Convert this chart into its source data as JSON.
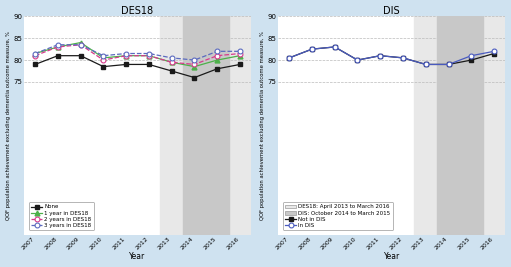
{
  "years": [
    2007,
    2008,
    2009,
    2010,
    2011,
    2012,
    2013,
    2014,
    2015,
    2016
  ],
  "des18_none": [
    79.0,
    81.0,
    81.0,
    78.5,
    79.0,
    79.0,
    77.5,
    76.0,
    78.0,
    79.0
  ],
  "des18_1year": [
    81.5,
    83.0,
    84.0,
    80.5,
    81.0,
    81.0,
    79.5,
    78.5,
    80.0,
    81.0
  ],
  "des18_2years": [
    81.0,
    83.0,
    83.5,
    80.0,
    81.0,
    81.0,
    79.5,
    79.0,
    81.0,
    81.5
  ],
  "des18_3years": [
    81.5,
    83.5,
    83.5,
    81.0,
    81.5,
    81.5,
    80.5,
    80.0,
    82.0,
    82.0
  ],
  "dis_not_in": [
    80.5,
    82.5,
    83.0,
    80.0,
    81.0,
    80.5,
    79.0,
    79.0,
    80.0,
    81.5
  ],
  "dis_in": [
    80.5,
    82.5,
    83.0,
    80.0,
    81.0,
    80.5,
    79.0,
    79.0,
    81.0,
    82.0
  ],
  "ylim": [
    40,
    90
  ],
  "yticks": [
    75,
    80,
    85,
    90
  ],
  "bg_color": "#cfe2f0",
  "plot_bg": "#ffffff",
  "shade_light": "#e8e8e8",
  "shade_dark": "#c8c8c8",
  "color_none": "#1a1a1a",
  "color_1year": "#4db04a",
  "color_2years": "#d63a8c",
  "color_3years": "#5b6abf",
  "color_not_in": "#1a1a1a",
  "color_in": "#4a5bbf",
  "title_des18": "DES18",
  "title_dis": "DIS",
  "ylabel": "QOF population achievement excluding dementia outcome measure, %",
  "xlabel": "Year",
  "legend_des18": [
    "None",
    "1 year in DES18",
    "2 years in DES18",
    "3 years in DES18"
  ],
  "legend_dis_patches": [
    "DES18: April 2013 to March 2016",
    "DIS: October 2014 to March 2015"
  ],
  "legend_dis_lines": [
    "Not in DIS",
    "In DIS"
  ]
}
